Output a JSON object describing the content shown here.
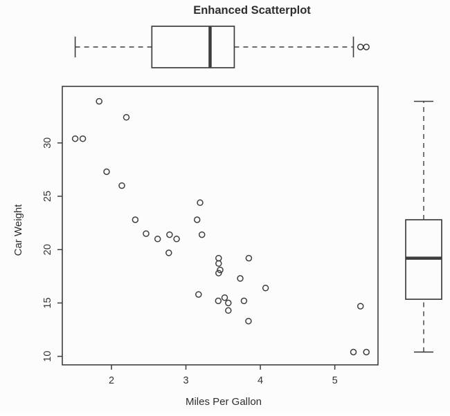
{
  "chart_data": {
    "type": "scatter",
    "title": "Enhanced Scatterplot",
    "xlabel": "Miles Per Gallon",
    "ylabel": "Car Weight",
    "x_ticks": [
      2,
      3,
      4,
      5
    ],
    "y_ticks": [
      10,
      15,
      20,
      25,
      30
    ],
    "xlim": [
      1.34,
      5.58
    ],
    "ylim": [
      9.2,
      35.3
    ],
    "grid": "off",
    "point_style": "open-circle",
    "points": [
      [
        2.62,
        21.0
      ],
      [
        2.875,
        21.0
      ],
      [
        2.32,
        22.8
      ],
      [
        3.215,
        21.4
      ],
      [
        3.44,
        18.7
      ],
      [
        3.46,
        18.1
      ],
      [
        3.57,
        14.3
      ],
      [
        3.19,
        24.4
      ],
      [
        3.15,
        22.8
      ],
      [
        3.44,
        19.2
      ],
      [
        3.44,
        17.8
      ],
      [
        4.07,
        16.4
      ],
      [
        3.73,
        17.3
      ],
      [
        3.78,
        15.2
      ],
      [
        5.25,
        10.4
      ],
      [
        5.424,
        10.4
      ],
      [
        5.345,
        14.7
      ],
      [
        2.2,
        32.4
      ],
      [
        1.615,
        30.4
      ],
      [
        1.835,
        33.9
      ],
      [
        2.465,
        21.5
      ],
      [
        3.52,
        15.5
      ],
      [
        3.435,
        15.2
      ],
      [
        3.84,
        13.3
      ],
      [
        3.845,
        19.2
      ],
      [
        1.935,
        27.3
      ],
      [
        2.14,
        26.0
      ],
      [
        1.513,
        30.4
      ],
      [
        3.17,
        15.8
      ],
      [
        2.77,
        19.7
      ],
      [
        3.57,
        15.0
      ],
      [
        2.78,
        21.4
      ]
    ],
    "marginal_boxplot_x": {
      "lower_whisker": 1.513,
      "q1": 2.5425,
      "median": 3.325,
      "q3": 3.65,
      "upper_whisker": 5.25,
      "outliers": [
        5.345,
        5.424
      ]
    },
    "marginal_boxplot_y": {
      "lower_whisker": 10.4,
      "q1": 15.35,
      "median": 19.2,
      "q3": 22.8,
      "upper_whisker": 33.9,
      "outliers": []
    },
    "colors": {
      "stroke": "#3d3d3d",
      "text": "#2e2e2e",
      "background": "#fcfcfc"
    }
  }
}
